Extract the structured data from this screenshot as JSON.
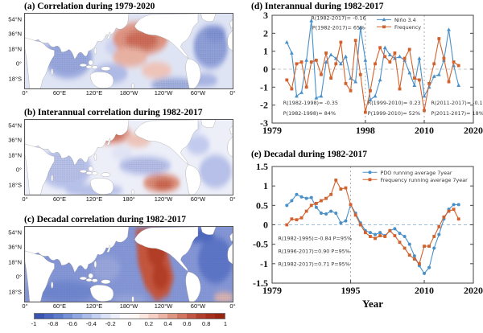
{
  "colorbar": {
    "ticks": [
      "-1",
      "-0.8",
      "-0.6",
      "-0.4",
      "-0.2",
      "0",
      "0.2",
      "0.4",
      "0.6",
      "0.8",
      "1"
    ],
    "palette": [
      "#3a53b0",
      "#4a66bf",
      "#5d7aca",
      "#7590d5",
      "#8fa6e0",
      "#aabbe9",
      "#c4d0f1",
      "#dbe2f7",
      "#edf0fb",
      "#fbfbfe",
      "#fef7f5",
      "#fbe6e0",
      "#f5cfc4",
      "#eab3a3",
      "#dd9582",
      "#cf7560",
      "#c05744",
      "#b23e2c",
      "#a52e1c",
      "#992410"
    ]
  },
  "chart_data": [
    {
      "type": "contour-map",
      "panel": "a",
      "title": "(a) Correlation during 1979-2020",
      "lat_ticks": [
        "54°N",
        "36°N",
        "18°N",
        "0°",
        "18°S"
      ],
      "lon_ticks": [
        "0°",
        "60°E",
        "120°E",
        "180°W",
        "120°W",
        "60°W",
        "0°"
      ],
      "value_range": [
        -1,
        1
      ],
      "field_summary": "Positive correlation (red, hatched) over central North Pacific; negative correlation (blue) over Indian Ocean, Atlantic and far-eastern Pacific"
    },
    {
      "type": "contour-map",
      "panel": "b",
      "title": "(b) Interannual correlation during 1982-2017",
      "lat_ticks": [
        "54°N",
        "36°N",
        "18°N",
        "0°",
        "18°S"
      ],
      "lon_ticks": [
        "0°",
        "60°E",
        "120°E",
        "180°",
        "120°W",
        "60°W",
        "0°"
      ],
      "value_range": [
        -1,
        1
      ],
      "field_summary": "Weak positive correlation over northwest Pacific and South Pacific; weak negative correlation over Indian Ocean and equatorial Pacific"
    },
    {
      "type": "contour-map",
      "panel": "c",
      "title": "(c) Decadal correlation during 1982-2017",
      "lat_ticks": [
        "54°N",
        "36°N",
        "18°N",
        "0°",
        "18°S"
      ],
      "lon_ticks": [
        "0°",
        "60°E",
        "120°E",
        "180°W",
        "120°W",
        "60°W",
        "0°"
      ],
      "value_range": [
        -1,
        1
      ],
      "field_summary": "Strong negative correlation (blue) over most oceans; strong positive correlation (red wedge) over central-eastern Pacific"
    },
    {
      "type": "line",
      "panel": "d",
      "title": "(d) Interannual during 1982-2017",
      "x_label": "",
      "x_range": [
        1979,
        2020
      ],
      "y_range": [
        -3,
        3
      ],
      "y_ticks": [
        3,
        2,
        1,
        0,
        -1,
        -2,
        -3
      ],
      "x_ticks": [
        1979,
        1998,
        2010,
        2020
      ],
      "vlines": [
        1998,
        2010
      ],
      "hline": 0,
      "hline_color": "#b9b9b9",
      "legend": {
        "x": 0.52,
        "y": 0.04
      },
      "years": [
        1982,
        1983,
        1984,
        1985,
        1986,
        1987,
        1988,
        1989,
        1990,
        1991,
        1992,
        1993,
        1994,
        1995,
        1996,
        1997,
        1998,
        1999,
        2000,
        2001,
        2002,
        2003,
        2004,
        2005,
        2006,
        2007,
        2008,
        2009,
        2010,
        2011,
        2012,
        2013,
        2014,
        2015,
        2016,
        2017
      ],
      "series": [
        {
          "name": "Niño 3.4",
          "color": "#4a90c8",
          "marker": "triangle",
          "values": [
            1.5,
            0.9,
            -1.5,
            -1.3,
            0.5,
            2.7,
            -1.6,
            -1.5,
            0.4,
            0.8,
            0.6,
            0.3,
            0.7,
            -0.5,
            -0.7,
            2.3,
            0.5,
            -1.7,
            -1.5,
            -0.6,
            1.2,
            0.8,
            0.6,
            0.7,
            0.5,
            -0.2,
            -0.9,
            0.6,
            -1.5,
            -1.0,
            -0.4,
            -0.3,
            0.5,
            2.2,
            0.2,
            -0.9
          ]
        },
        {
          "name": "Frequency",
          "color": "#d2622d",
          "marker": "square",
          "values": [
            -0.6,
            -1.1,
            0.3,
            0.4,
            -1.0,
            0.4,
            0.5,
            -0.3,
            0.9,
            -0.5,
            0.3,
            1.5,
            -0.8,
            -1.2,
            1.6,
            -0.3,
            -2.4,
            -1.2,
            0.3,
            1.2,
            0.7,
            0.4,
            0.9,
            -1.1,
            0.6,
            1.1,
            -0.5,
            -0.6,
            -2.3,
            -0.8,
            0.3,
            1.7,
            0.6,
            -0.7,
            0.4,
            0.2
          ]
        }
      ],
      "annotations": [
        {
          "x": 0.33,
          "y": 0.04,
          "t": "R(1982-2017)= -0.16",
          "anchor": "middle"
        },
        {
          "x": 0.33,
          "y": 0.13,
          "t": "P(1982-2017)= 65%",
          "anchor": "middle"
        },
        {
          "x": 0.055,
          "y": 0.83,
          "t": "R(1982-1998)= -0.35",
          "anchor": "start"
        },
        {
          "x": 0.055,
          "y": 0.925,
          "t": "P(1982-1998)= 84%",
          "anchor": "start"
        },
        {
          "x": 0.475,
          "y": 0.83,
          "t": "R(1999-2010)= 0.23",
          "anchor": "start"
        },
        {
          "x": 0.475,
          "y": 0.925,
          "t": "P(1999-2010)= 52%",
          "anchor": "start"
        },
        {
          "x": 0.79,
          "y": 0.83,
          "t": "R(2011-2017)= -0.11",
          "anchor": "start"
        },
        {
          "x": 0.79,
          "y": 0.925,
          "t": "P(2011-2017)= 18%",
          "anchor": "start"
        }
      ]
    },
    {
      "type": "line",
      "panel": "e",
      "title": "(e) Decadal during 1982-2017",
      "x_label": "Year",
      "x_range": [
        1979,
        2020
      ],
      "y_range": [
        -1.5,
        1.5
      ],
      "y_ticks": [
        1.5,
        1,
        0.5,
        0,
        -0.5,
        -1,
        -1.5
      ],
      "x_ticks": [
        1979,
        1995,
        2010,
        2020
      ],
      "vlines": [
        1995
      ],
      "hline": 0,
      "hline_color": "#7fa8cc",
      "legend": {
        "x": 0.45,
        "y": 0.05
      },
      "years": [
        1982,
        1983,
        1984,
        1985,
        1986,
        1987,
        1988,
        1989,
        1990,
        1991,
        1992,
        1993,
        1994,
        1995,
        1996,
        1997,
        1998,
        1999,
        2000,
        2001,
        2002,
        2003,
        2004,
        2005,
        2006,
        2007,
        2008,
        2009,
        2010,
        2011,
        2012,
        2013,
        2014,
        2015,
        2016,
        2017
      ],
      "series": [
        {
          "name": "PDO running average 7year",
          "color": "#4a90c8",
          "marker": "circle",
          "values": [
            0.5,
            0.62,
            0.78,
            0.72,
            0.68,
            0.7,
            0.45,
            0.3,
            0.28,
            0.35,
            0.3,
            0.05,
            0.1,
            0.52,
            0.3,
            0.05,
            -0.15,
            -0.2,
            -0.25,
            -0.2,
            -0.28,
            -0.15,
            -0.1,
            -0.22,
            -0.3,
            -0.5,
            -0.8,
            -1.05,
            -1.25,
            -1.1,
            -0.6,
            -0.25,
            0.15,
            0.4,
            0.52,
            0.52
          ]
        },
        {
          "name": "Frequency running average 7year",
          "color": "#d2622d",
          "marker": "square",
          "values": [
            0.0,
            0.15,
            0.13,
            0.18,
            0.35,
            0.5,
            0.55,
            0.62,
            0.68,
            0.78,
            1.15,
            0.92,
            0.95,
            0.52,
            0.25,
            0.0,
            -0.2,
            -0.3,
            -0.35,
            -0.28,
            -0.3,
            -0.15,
            -0.28,
            -0.45,
            -0.6,
            -0.78,
            -0.88,
            -1.0,
            -0.55,
            -0.55,
            -0.3,
            -0.05,
            0.2,
            0.35,
            0.4,
            0.15
          ]
        }
      ],
      "annotations": [
        {
          "x": 0.03,
          "y": 0.63,
          "t": "R(1982-1995)=-0.84 P=95%",
          "anchor": "start"
        },
        {
          "x": 0.03,
          "y": 0.74,
          "t": "R(1996-2017)=0.90 P=95%",
          "anchor": "start"
        },
        {
          "x": 0.03,
          "y": 0.85,
          "t": "R(1982-2017)=0.71 P=95%",
          "anchor": "start"
        }
      ]
    }
  ]
}
